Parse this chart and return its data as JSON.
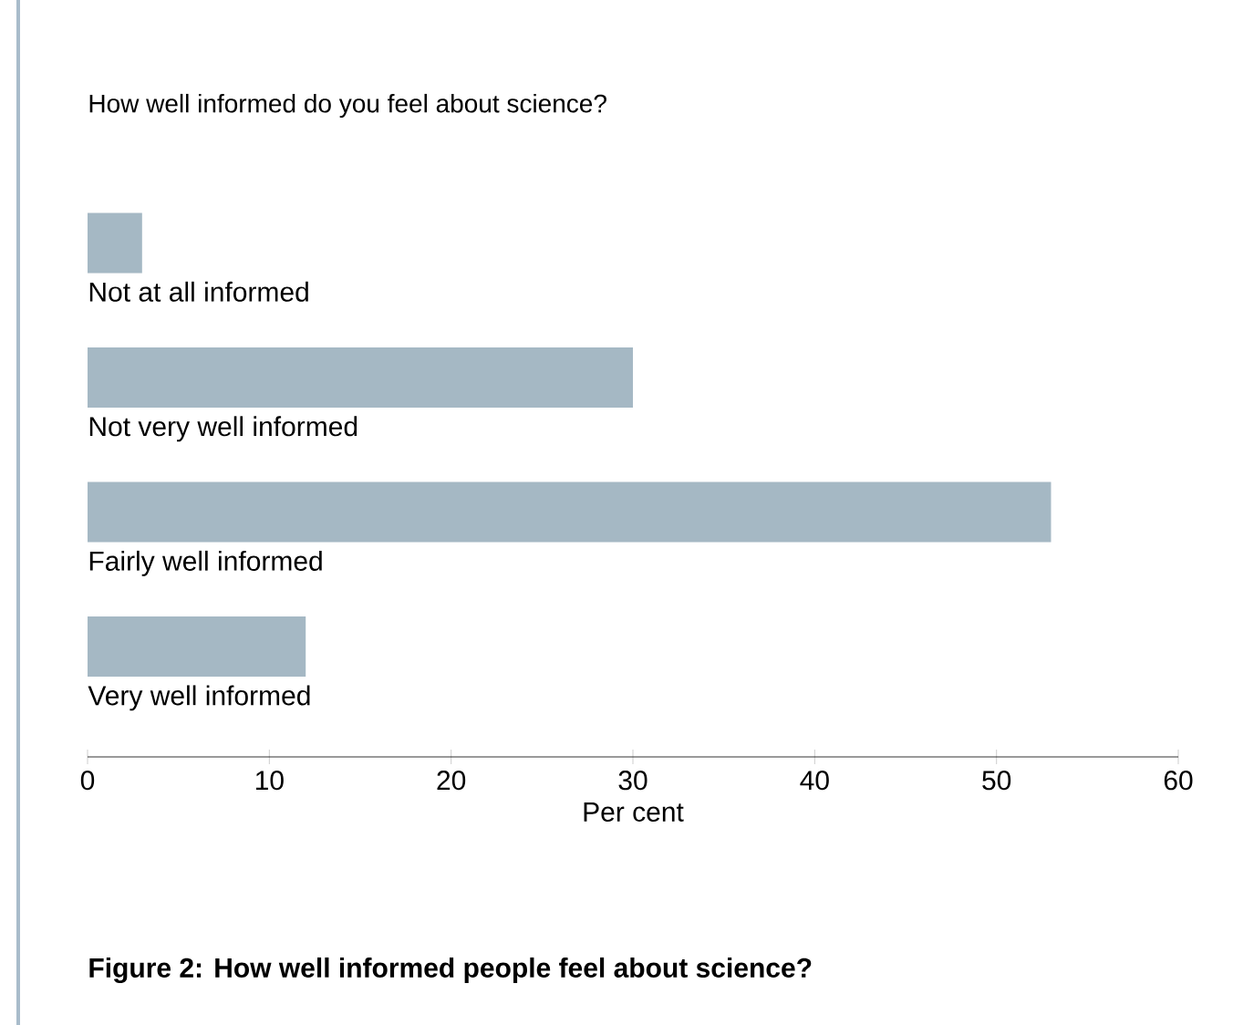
{
  "chart_data": {
    "type": "bar",
    "orientation": "horizontal",
    "title": "How well informed do you feel about science?",
    "categories": [
      "Not at all informed",
      "Not very well informed",
      "Fairly well informed",
      "Very well informed"
    ],
    "values": [
      3,
      30,
      53,
      12
    ],
    "color": "#a5b8c4",
    "xlabel": "Per cent",
    "xlim": [
      0,
      60
    ],
    "xticks": [
      0,
      10,
      20,
      30,
      40,
      50,
      60
    ],
    "annotations": [
      "Figure 2: How well informed people feel about science?"
    ]
  }
}
